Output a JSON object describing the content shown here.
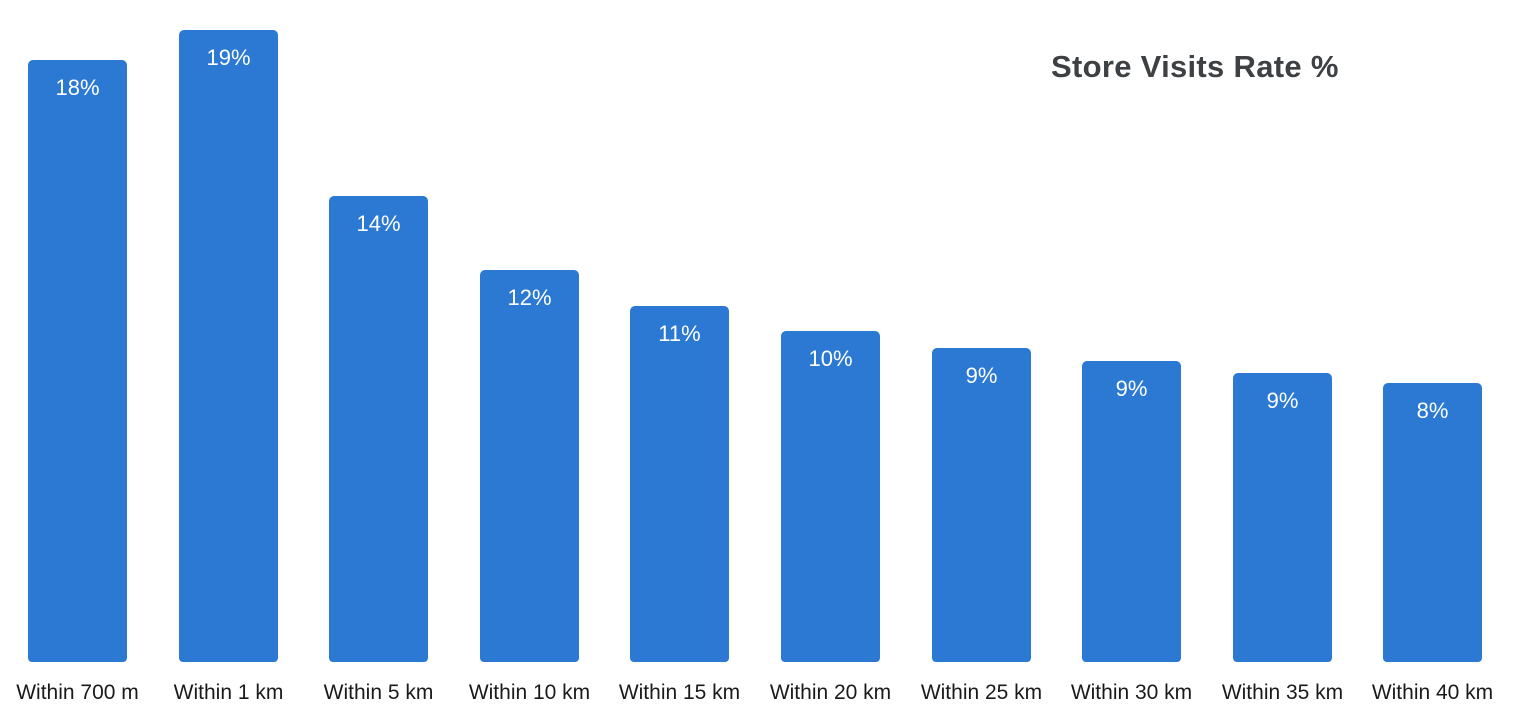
{
  "chart_title": "Store Visits Rate %",
  "colors": {
    "bar": "#2b79d3",
    "title": "#3d4144",
    "value_label": "#ffffff",
    "axis_label": "#1a1a1a",
    "background": "#ffffff"
  },
  "chart_data": {
    "type": "bar",
    "title": "Store Visits Rate %",
    "categories": [
      "Within 700 m",
      "Within 1 km",
      "Within 5 km",
      "Within 10 km",
      "Within 15 km",
      "Within 20 km",
      "Within 25 km",
      "Within 30 km",
      "Within 35 km",
      "Within 40 km"
    ],
    "series": [
      {
        "name": "Store Visits Rate %",
        "values": [
          18,
          19,
          14,
          12,
          11,
          10,
          9,
          9,
          9,
          8
        ],
        "values_exact": [
          18.1,
          19.0,
          14.0,
          11.8,
          10.7,
          9.95,
          9.45,
          9.05,
          8.7,
          8.4
        ],
        "data_labels": [
          "18%",
          "19%",
          "14%",
          "12%",
          "11%",
          "10%",
          "9%",
          "9%",
          "9%",
          "8%"
        ]
      }
    ],
    "xlabel": "",
    "ylabel": "",
    "ylim": [
      0,
      19.9
    ],
    "grid": false,
    "legend": false,
    "value_labels_position": "inside-top",
    "title_position": "top-right",
    "bar_color": "#2b79d3"
  }
}
